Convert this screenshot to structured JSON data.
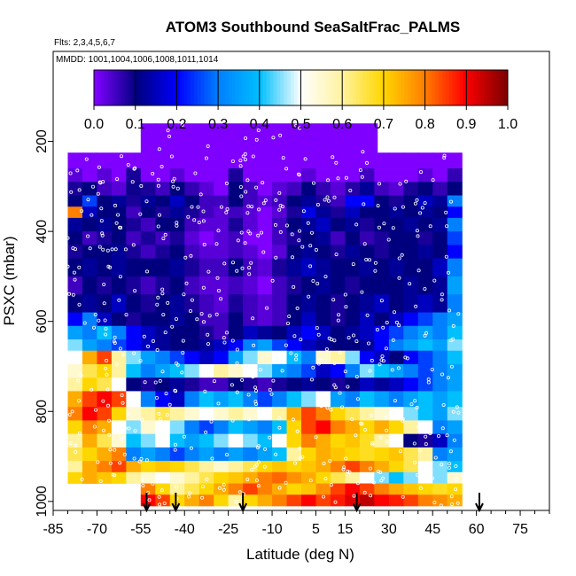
{
  "chart_data": {
    "type": "heatmap",
    "title": "ATOM3 Southbound SeaSaltFrac_PALMS",
    "flights_label": "Flts: 2,3,4,5,6,7",
    "dates_label": "MMDD: 1001,1004,1006,1008,1011,1014",
    "xlabel": "Latitude (deg N)",
    "ylabel": "PSXC (mbar)",
    "x_ticks": [
      -85,
      -70,
      -55,
      -40,
      -25,
      -10,
      5,
      15,
      30,
      45,
      60,
      75
    ],
    "y_ticks": [
      200,
      400,
      600,
      800,
      1000
    ],
    "xlim": [
      -85,
      85
    ],
    "ylim": [
      1020,
      0
    ],
    "colorbar": {
      "ticks": [
        "0.0",
        "0.1",
        "0.2",
        "0.3",
        "0.4",
        "0.5",
        "0.6",
        "0.7",
        "0.8",
        "0.9",
        "1.0"
      ],
      "range": [
        0,
        1
      ],
      "colors": [
        "#7f00ff",
        "#00007f",
        "#0000ff",
        "#0080ff",
        "#00bfff",
        "#ffffff",
        "#fff3a0",
        "#ffd700",
        "#ff8000",
        "#ff0000",
        "#7f0000"
      ]
    },
    "arrows_lat": [
      -53,
      -43,
      -20,
      19,
      61
    ],
    "pressure_bands": [
      {
        "p": [
          160,
          225
        ],
        "lat": [
          -55,
          26
        ],
        "values": [
          0.0,
          0.0,
          0.0,
          0.0,
          0.0,
          0.0,
          0.0,
          0.0,
          0.0,
          0.0,
          0.0,
          0.0,
          0.0,
          0.0,
          0.0,
          0.0
        ]
      },
      {
        "p": [
          225,
          260
        ],
        "lat": [
          -80,
          55
        ],
        "values": [
          0.0,
          0.0,
          0.0,
          0.0,
          0.0,
          0.0,
          0.0,
          0.0,
          0.0,
          0.0,
          0.0,
          0.0,
          0.0,
          0.0,
          0.0,
          0.0,
          0.0,
          0.0,
          0.0,
          0.0,
          0.0,
          0.0,
          0.0,
          0.0,
          0.0,
          0.0,
          0.0
        ]
      },
      {
        "p": [
          260,
          290
        ],
        "lat": [
          -80,
          55
        ],
        "values": [
          0.03,
          0.0,
          0.03,
          0.0,
          0.08,
          0.0,
          0.0,
          0.03,
          0.0,
          0.0,
          0.0,
          0.08,
          0.0,
          0.0,
          0.0,
          0.0,
          0.03,
          0.0,
          0.0,
          0.0,
          0.05,
          0.0,
          0.0,
          0.0,
          0.03,
          0.0,
          0.06
        ]
      },
      {
        "p": [
          290,
          320
        ],
        "lat": [
          -80,
          55
        ],
        "values": [
          0.08,
          0.1,
          0.05,
          0.03,
          0.09,
          0.08,
          0.05,
          0.1,
          0.06,
          0.03,
          0.0,
          0.1,
          0.05,
          0.0,
          0.03,
          0.05,
          0.1,
          0.06,
          0.03,
          0.07,
          0.12,
          0.05,
          0.03,
          0.08,
          0.1,
          0.06,
          0.1
        ]
      },
      {
        "p": [
          320,
          345
        ],
        "lat": [
          -80,
          55
        ],
        "values": [
          0.1,
          0.25,
          0.1,
          0.12,
          0.08,
          0.12,
          0.1,
          0.15,
          0.1,
          0.05,
          0.05,
          0.1,
          0.05,
          0.03,
          0.05,
          0.1,
          0.12,
          0.08,
          0.05,
          0.2,
          0.2,
          0.1,
          0.08,
          0.1,
          0.15,
          0.12,
          0.3
        ]
      },
      {
        "p": [
          345,
          370
        ],
        "lat": [
          -80,
          55
        ],
        "values": [
          0.8,
          0.15,
          0.1,
          0.1,
          0.05,
          0.1,
          0.08,
          0.12,
          0.08,
          0.05,
          0.03,
          0.05,
          0.03,
          0.0,
          0.03,
          0.08,
          0.18,
          0.12,
          0.08,
          0.15,
          0.1,
          0.1,
          0.12,
          0.1,
          0.12,
          0.1,
          0.2
        ]
      },
      {
        "p": [
          370,
          400
        ],
        "lat": [
          -80,
          55
        ],
        "values": [
          0.12,
          0.1,
          0.12,
          0.1,
          0.08,
          0.05,
          0.1,
          0.1,
          0.05,
          0.03,
          0.03,
          0.08,
          0.03,
          0.0,
          0.05,
          0.1,
          0.12,
          0.15,
          0.1,
          0.12,
          0.08,
          0.1,
          0.1,
          0.12,
          0.1,
          0.12,
          0.3
        ]
      },
      {
        "p": [
          400,
          430
        ],
        "lat": [
          -80,
          55
        ],
        "values": [
          0.1,
          0.05,
          0.08,
          0.1,
          0.05,
          0.08,
          0.05,
          0.08,
          0.03,
          0.0,
          0.03,
          0.05,
          0.0,
          0.0,
          0.05,
          0.08,
          0.1,
          0.12,
          0.05,
          0.1,
          0.06,
          0.08,
          0.1,
          0.1,
          0.08,
          0.1,
          0.25
        ]
      },
      {
        "p": [
          430,
          460
        ],
        "lat": [
          -80,
          55
        ],
        "values": [
          0.08,
          0.1,
          0.1,
          0.12,
          0.08,
          0.05,
          0.08,
          0.1,
          0.05,
          0.03,
          0.03,
          0.05,
          0.03,
          0.0,
          0.03,
          0.1,
          0.12,
          0.1,
          0.08,
          0.12,
          0.1,
          0.08,
          0.1,
          0.1,
          0.12,
          0.1,
          0.2
        ]
      },
      {
        "p": [
          460,
          500
        ],
        "lat": [
          -80,
          55
        ],
        "values": [
          0.1,
          0.12,
          0.1,
          0.12,
          0.1,
          0.1,
          0.1,
          0.12,
          0.08,
          0.05,
          0.05,
          0.1,
          0.05,
          0.03,
          0.08,
          0.12,
          0.15,
          0.12,
          0.1,
          0.1,
          0.12,
          0.1,
          0.12,
          0.1,
          0.1,
          0.15,
          0.3
        ]
      },
      {
        "p": [
          500,
          540
        ],
        "lat": [
          -80,
          55
        ],
        "values": [
          0.05,
          0.1,
          0.08,
          0.1,
          0.08,
          0.05,
          0.08,
          0.1,
          0.05,
          0.03,
          0.03,
          0.05,
          0.03,
          0.0,
          0.05,
          0.08,
          0.1,
          0.12,
          0.1,
          0.08,
          0.1,
          0.1,
          0.1,
          0.12,
          0.1,
          0.12,
          0.35
        ]
      },
      {
        "p": [
          540,
          580
        ],
        "lat": [
          -80,
          55
        ],
        "values": [
          0.1,
          0.12,
          0.1,
          0.15,
          0.1,
          0.08,
          0.1,
          0.12,
          0.08,
          0.05,
          0.03,
          0.08,
          0.05,
          0.03,
          0.05,
          0.1,
          0.12,
          0.1,
          0.08,
          0.1,
          0.12,
          0.15,
          0.1,
          0.12,
          0.15,
          0.12,
          0.3
        ]
      },
      {
        "p": [
          580,
          610
        ],
        "lat": [
          -80,
          55
        ],
        "values": [
          0.2,
          0.3,
          0.15,
          0.1,
          0.08,
          0.1,
          0.1,
          0.12,
          0.1,
          0.05,
          0.05,
          0.1,
          0.05,
          0.03,
          0.05,
          0.1,
          0.15,
          0.1,
          0.08,
          0.1,
          0.15,
          0.1,
          0.15,
          0.2,
          0.25,
          0.3,
          0.35
        ]
      },
      {
        "p": [
          610,
          640
        ],
        "lat": [
          -80,
          55
        ],
        "values": [
          0.35,
          0.3,
          0.4,
          0.3,
          0.2,
          0.15,
          0.12,
          0.1,
          0.1,
          0.08,
          0.05,
          0.1,
          0.15,
          0.12,
          0.1,
          0.15,
          0.2,
          0.15,
          0.1,
          0.12,
          0.15,
          0.2,
          0.25,
          0.3,
          0.35,
          0.3,
          0.4
        ]
      },
      {
        "p": [
          640,
          665
        ],
        "lat": [
          -80,
          55
        ],
        "values": [
          0.45,
          0.35,
          0.3,
          0.25,
          0.2,
          0.15,
          0.12,
          0.1,
          0.1,
          0.12,
          0.15,
          0.2,
          0.3,
          0.35,
          0.25,
          0.2,
          0.15,
          0.12,
          0.1,
          0.1,
          0.12,
          0.2,
          0.3,
          0.35,
          0.4,
          0.35,
          0.45
        ]
      },
      {
        "p": [
          665,
          695
        ],
        "lat": [
          -80,
          55
        ],
        "values": [
          0.5,
          0.75,
          0.85,
          0.6,
          0.45,
          0.35,
          0.3,
          0.25,
          0.2,
          0.15,
          0.2,
          0.35,
          0.45,
          0.55,
          0.5,
          0.4,
          0.3,
          0.55,
          0.6,
          0.45,
          0.2,
          0.15,
          0.1,
          0.2,
          0.25,
          0.3,
          0.4
        ]
      },
      {
        "p": [
          695,
          725
        ],
        "lat": [
          -80,
          55
        ],
        "values": [
          0.55,
          0.65,
          0.7,
          0.6,
          0.4,
          0.3,
          0.35,
          0.4,
          0.45,
          0.5,
          0.6,
          0.55,
          0.5,
          0.45,
          0.35,
          0.3,
          0.25,
          0.15,
          0.2,
          0.3,
          0.45,
          0.4,
          0.35,
          0.3,
          0.25,
          0.3,
          0.35
        ]
      },
      {
        "p": [
          725,
          755
        ],
        "lat": [
          -80,
          55
        ],
        "values": [
          0.6,
          0.7,
          0.65,
          0.5,
          0.1,
          0.08,
          0.1,
          0.12,
          0.08,
          0.05,
          0.05,
          0.1,
          0.08,
          0.05,
          0.08,
          0.1,
          0.12,
          0.1,
          0.08,
          0.1,
          0.15,
          0.12,
          0.15,
          0.2,
          0.25,
          0.3,
          0.35
        ]
      },
      {
        "p": [
          755,
          790
        ],
        "lat": [
          -80,
          55
        ],
        "values": [
          0.75,
          0.85,
          0.9,
          0.85,
          0.5,
          0.3,
          0.2,
          0.15,
          0.3,
          0.4,
          0.35,
          0.4,
          0.3,
          0.25,
          0.3,
          0.4,
          0.45,
          0.5,
          0.35,
          0.3,
          0.4,
          0.35,
          0.3,
          0.35,
          0.4,
          0.35,
          0.4
        ]
      },
      {
        "p": [
          790,
          820
        ],
        "lat": [
          -80,
          55
        ],
        "values": [
          0.8,
          0.9,
          0.85,
          0.7,
          0.55,
          0.6,
          0.65,
          0.6,
          0.55,
          0.5,
          0.55,
          0.6,
          0.55,
          0.5,
          0.6,
          0.75,
          0.85,
          0.8,
          0.7,
          0.65,
          0.6,
          0.55,
          0.5,
          0.45,
          0.4,
          0.35,
          0.45
        ]
      },
      {
        "p": [
          820,
          850
        ],
        "lat": [
          -80,
          55
        ],
        "values": [
          0.7,
          0.8,
          0.75,
          0.5,
          0.45,
          0.55,
          0.5,
          0.45,
          0.3,
          0.25,
          0.3,
          0.4,
          0.35,
          0.3,
          0.4,
          0.7,
          0.85,
          0.9,
          0.8,
          0.75,
          0.7,
          0.75,
          0.7,
          0.6,
          0.5,
          0.3,
          0.35
        ]
      },
      {
        "p": [
          850,
          880
        ],
        "lat": [
          -80,
          55
        ],
        "values": [
          0.6,
          0.75,
          0.65,
          0.55,
          0.4,
          0.45,
          0.5,
          0.4,
          0.35,
          0.4,
          0.45,
          0.5,
          0.45,
          0.4,
          0.5,
          0.7,
          0.8,
          0.75,
          0.7,
          0.72,
          0.68,
          0.6,
          0.5,
          0.1,
          0.08,
          0.15,
          0.3
        ]
      },
      {
        "p": [
          880,
          910
        ],
        "lat": [
          -80,
          55
        ],
        "values": [
          0.65,
          0.7,
          0.75,
          0.8,
          0.3,
          0.35,
          0.3,
          0.25,
          0.3,
          0.35,
          0.3,
          0.35,
          0.3,
          0.35,
          0.4,
          0.6,
          0.7,
          0.75,
          0.72,
          0.7,
          0.68,
          0.7,
          0.72,
          0.65,
          0.6,
          0.3,
          0.35
        ]
      },
      {
        "p": [
          910,
          935
        ],
        "lat": [
          -80,
          55
        ],
        "values": [
          0.6,
          0.75,
          0.8,
          0.85,
          0.75,
          0.7,
          0.72,
          0.7,
          0.65,
          0.6,
          0.55,
          0.6,
          0.65,
          0.7,
          0.72,
          0.7,
          0.72,
          0.75,
          0.8,
          0.85,
          0.8,
          0.75,
          0.7,
          0.65,
          0.5,
          0.45,
          0.4
        ]
      },
      {
        "p": [
          935,
          960
        ],
        "lat": [
          -80,
          55
        ],
        "values": [
          0.7,
          0.75,
          0.72,
          0.7,
          0.6,
          0.55,
          0.5,
          0.55,
          0.6,
          0.65,
          0.7,
          0.72,
          0.75,
          0.8,
          0.82,
          0.78,
          0.75,
          0.7,
          0.65,
          0.6,
          0.5,
          0.45,
          0.4,
          0.45,
          0.5,
          0.45,
          0.55
        ]
      },
      {
        "p": [
          960,
          985
        ],
        "lat": [
          -55,
          55
        ],
        "values": [
          0.8,
          0.7,
          0.6,
          0.65,
          0.7,
          0.75,
          0.8,
          0.85,
          0.8,
          0.75,
          0.7,
          0.72,
          0.78,
          0.85,
          0.9,
          0.85,
          0.8,
          0.75,
          0.72,
          0.7,
          0.68,
          0.7
        ]
      },
      {
        "p": [
          985,
          1010
        ],
        "lat": [
          -55,
          55
        ],
        "values": [
          0.9,
          0.85,
          0.7,
          0.75,
          0.8,
          0.7,
          0.6,
          0.7,
          0.75,
          0.8,
          0.85,
          0.9,
          0.85,
          0.88,
          0.92,
          0.95,
          0.9,
          0.88,
          0.85,
          0.8,
          0.78,
          0.75
        ]
      }
    ]
  }
}
